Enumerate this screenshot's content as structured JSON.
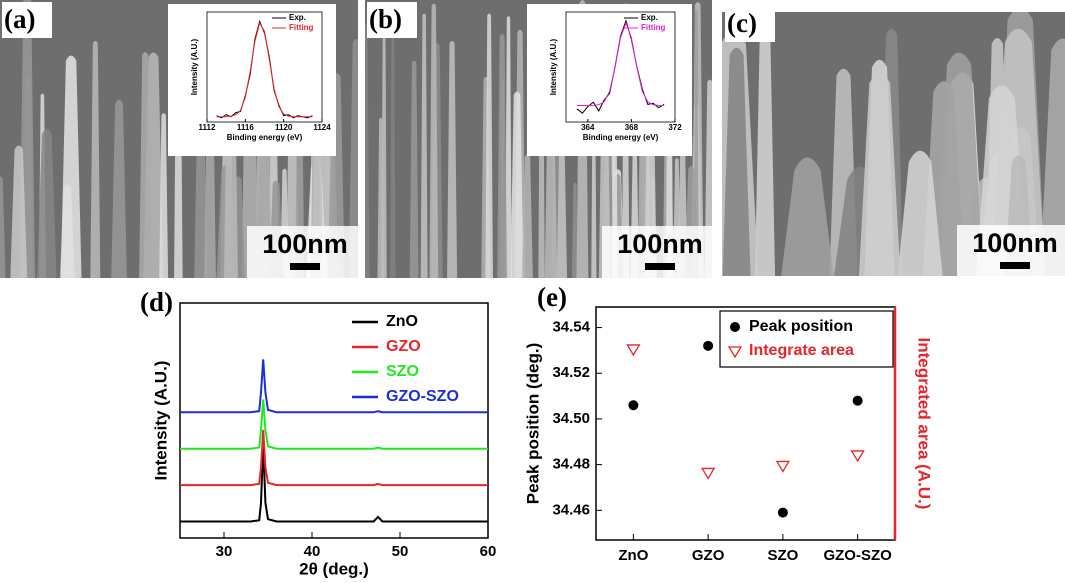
{
  "panel_labels": [
    "(a)",
    "(b)",
    "(c)",
    "(d)",
    "(e)"
  ],
  "scale_bars": [
    "100nm",
    "100nm",
    "100nm"
  ],
  "chart_data": [
    {
      "type": "line",
      "xlabel": "Binding energy (eV)",
      "ylabel": "Intensity (A.U.)",
      "x": [
        1113,
        1113.5,
        1114,
        1114.5,
        1115,
        1115.5,
        1116,
        1116.5,
        1117,
        1117.5,
        1118,
        1118.5,
        1119,
        1119.5,
        1120,
        1120.5,
        1121,
        1121.5,
        1122,
        1122.5,
        1123
      ],
      "xlim": [
        1112,
        1124
      ],
      "xticks": [
        1112,
        1116,
        1120,
        1124
      ],
      "ylim": [
        0,
        1.05
      ],
      "series": [
        {
          "name": "Exp.",
          "color": "#000000",
          "values": [
            0.06,
            0.04,
            0.07,
            0.05,
            0.09,
            0.1,
            0.25,
            0.45,
            0.79,
            0.96,
            0.85,
            0.62,
            0.3,
            0.16,
            0.06,
            0.07,
            0.04,
            0.06,
            0.05,
            0.04,
            0.06
          ]
        },
        {
          "name": "Fitting",
          "color": "#e8252a",
          "values": [
            0.05,
            0.05,
            0.05,
            0.055,
            0.07,
            0.11,
            0.235,
            0.477,
            0.77,
            0.945,
            0.865,
            0.596,
            0.318,
            0.147,
            0.075,
            0.055,
            0.05,
            0.05,
            0.05,
            0.05,
            0.05
          ]
        }
      ]
    },
    {
      "type": "line",
      "xlabel": "Binding energy (eV)",
      "ylabel": "Intensity (A.U.)",
      "x": [
        363,
        363.5,
        364,
        364.5,
        365,
        365.5,
        366,
        366.5,
        367,
        367.5,
        368,
        368.5,
        369,
        369.5,
        370,
        370.5,
        371
      ],
      "xlim": [
        362,
        372
      ],
      "xticks": [
        364,
        368,
        372
      ],
      "ylim": [
        0,
        1
      ],
      "series": [
        {
          "name": "Exp.",
          "color": "#000000",
          "values": [
            0.12,
            0.08,
            0.14,
            0.18,
            0.1,
            0.2,
            0.26,
            0.5,
            0.78,
            0.92,
            0.75,
            0.5,
            0.3,
            0.16,
            0.17,
            0.13,
            0.16
          ]
        },
        {
          "name": "Fitting",
          "color": "#e81fd7",
          "values": [
            0.15,
            0.15,
            0.15,
            0.151,
            0.156,
            0.183,
            0.279,
            0.494,
            0.767,
            0.9,
            0.767,
            0.494,
            0.279,
            0.183,
            0.156,
            0.151,
            0.15
          ]
        }
      ]
    },
    {
      "type": "line",
      "xlabel": "2θ (deg.)",
      "ylabel": "Intensity (A.U.)",
      "x": [
        25,
        30,
        33,
        34,
        34.2,
        34.45,
        34.7,
        35,
        36,
        40,
        47,
        47.5,
        48,
        55,
        60
      ],
      "xlim": [
        25,
        60
      ],
      "xticks": [
        30,
        40,
        50,
        60
      ],
      "ylim": [
        0,
        10
      ],
      "series": [
        {
          "name": "ZnO",
          "color": "#000000",
          "values": [
            0.7,
            0.7,
            0.7,
            0.75,
            1.5,
            4.0,
            1.5,
            0.8,
            0.7,
            0.7,
            0.7,
            0.9,
            0.7,
            0.7,
            0.7
          ]
        },
        {
          "name": "GZO",
          "color": "#e8252a",
          "values": [
            2.25,
            2.25,
            2.25,
            2.3,
            3.0,
            4.6,
            3.0,
            2.35,
            2.25,
            2.25,
            2.25,
            2.3,
            2.25,
            2.25,
            2.25
          ]
        },
        {
          "name": "SZO",
          "color": "#22e822",
          "values": [
            3.8,
            3.8,
            3.8,
            3.85,
            4.6,
            5.9,
            4.6,
            3.9,
            3.8,
            3.8,
            3.8,
            3.85,
            3.8,
            3.8,
            3.8
          ]
        },
        {
          "name": "GZO-SZO",
          "color": "#1b2fd6",
          "values": [
            5.35,
            5.35,
            5.35,
            5.4,
            6.2,
            7.6,
            6.2,
            5.45,
            5.35,
            5.35,
            5.35,
            5.4,
            5.35,
            5.35,
            5.35
          ]
        }
      ]
    },
    {
      "type": "scatter",
      "ylabel": "Peak position (deg.)",
      "y2label": "Integrated area (A.U.)",
      "categories": [
        "ZnO",
        "GZO",
        "SZO",
        "GZO-SZO"
      ],
      "ylim": [
        34.447,
        34.549
      ],
      "yticks": [
        34.46,
        34.48,
        {
          "value": 34.5,
          "label": "34.50"
        },
        34.52,
        34.54
      ],
      "y2lim": [
        0,
        10
      ],
      "series": [
        {
          "name": "Peak position",
          "color": "#000000",
          "marker": "circle",
          "values": [
            34.506,
            34.532,
            34.459,
            34.508
          ]
        },
        {
          "name": "Integrate area",
          "color": "#e8252a",
          "marker": "triangle-down-open",
          "axis": "y2",
          "values": [
            8.2,
            2.9,
            3.2,
            3.65
          ]
        }
      ]
    }
  ]
}
